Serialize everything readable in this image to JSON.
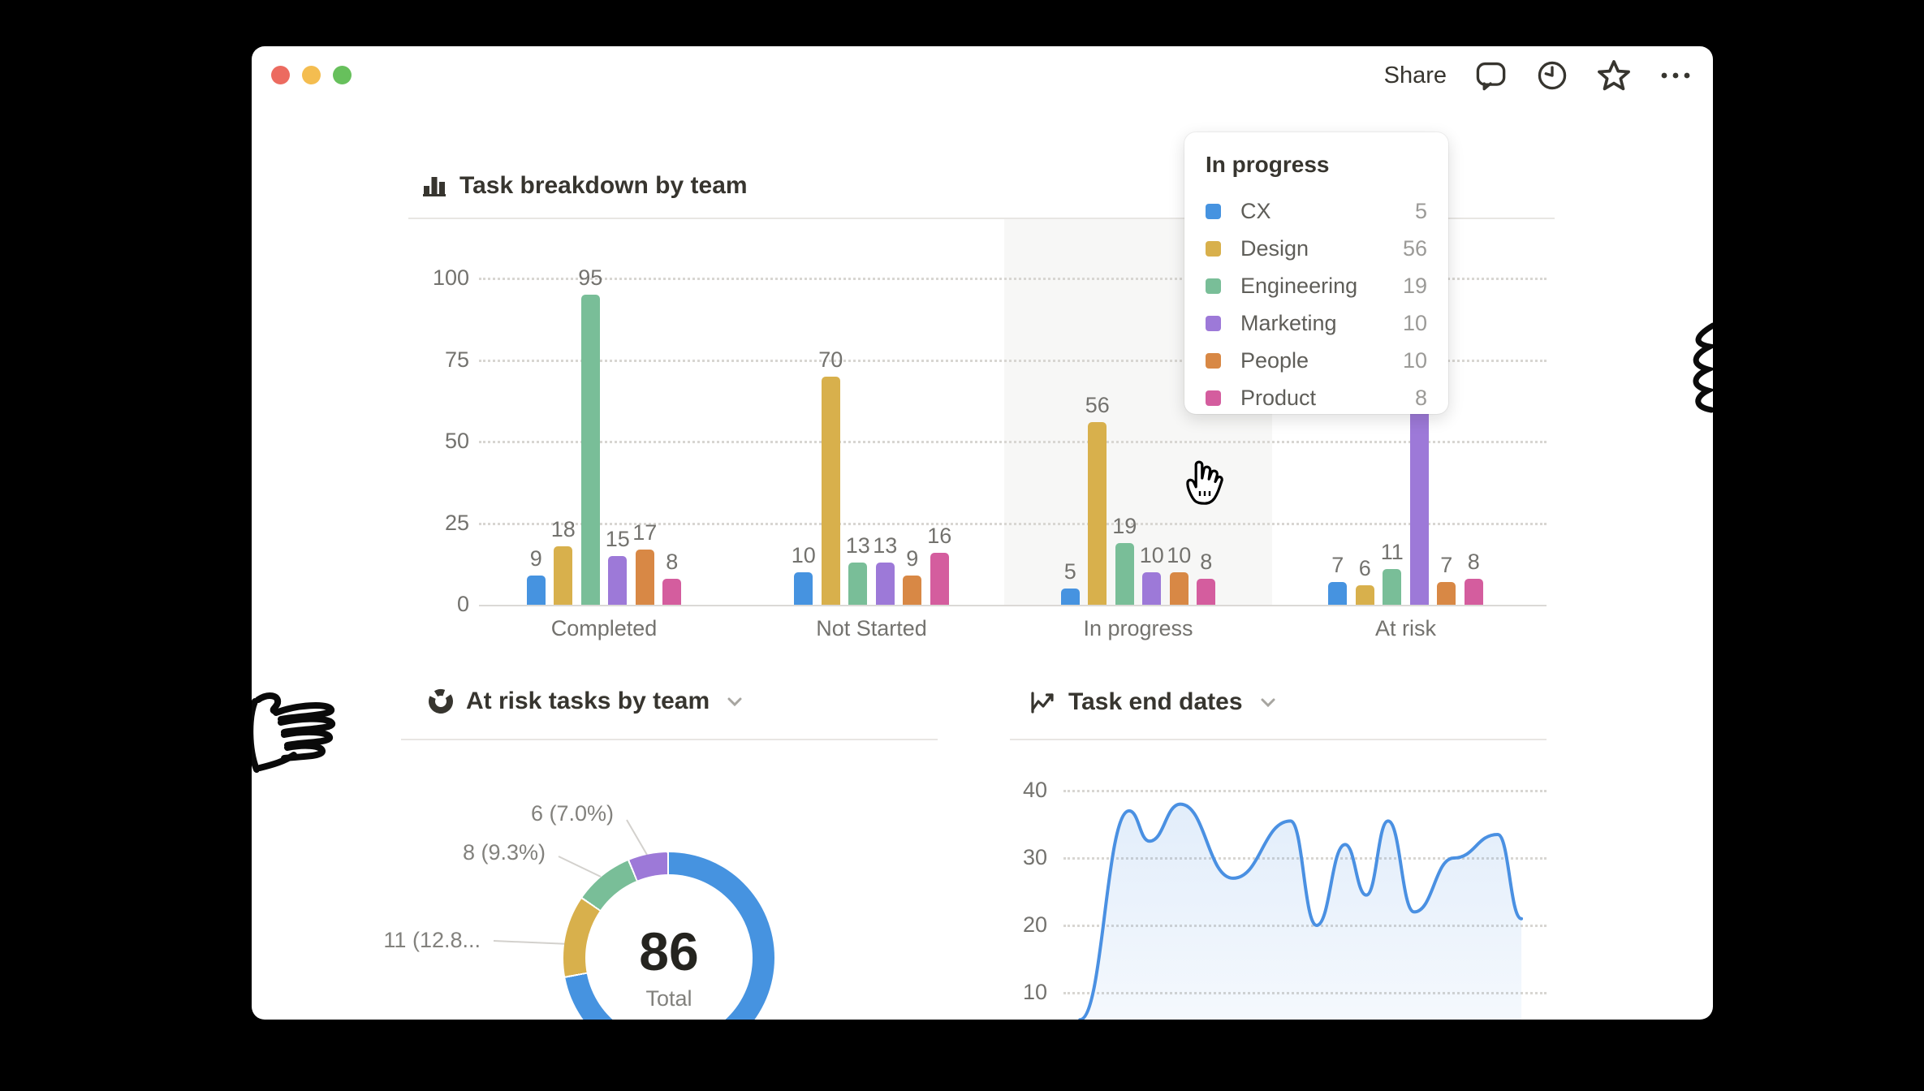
{
  "top_bar": {
    "share_label": "Share",
    "icons": [
      "comment-icon",
      "clock-icon",
      "star-icon",
      "more-icon"
    ],
    "traffic_light_colors": {
      "close": "#ec6b60",
      "minimize": "#f4bd50",
      "zoom": "#67c05c"
    }
  },
  "tooltip": {
    "title": "In progress",
    "rows": [
      {
        "team": "CX",
        "value": "5",
        "color": "#4693e0"
      },
      {
        "team": "Design",
        "value": "56",
        "color": "#d8b04c"
      },
      {
        "team": "Engineering",
        "value": "19",
        "color": "#79be98"
      },
      {
        "team": "Marketing",
        "value": "10",
        "color": "#9d79d8"
      },
      {
        "team": "People",
        "value": "10",
        "color": "#d88845"
      },
      {
        "team": "Product",
        "value": "8",
        "color": "#d45d9e"
      }
    ]
  },
  "chart_data": [
    {
      "id": "task_breakdown",
      "type": "bar",
      "title": "Task breakdown by team",
      "categories": [
        "Completed",
        "Not Started",
        "In progress",
        "At risk"
      ],
      "series": [
        {
          "name": "CX",
          "color": "#4693e0",
          "values": [
            9,
            10,
            5,
            7
          ]
        },
        {
          "name": "Design",
          "color": "#d8b04c",
          "values": [
            18,
            70,
            56,
            6
          ]
        },
        {
          "name": "Engineering",
          "color": "#79be98",
          "values": [
            95,
            13,
            19,
            11
          ]
        },
        {
          "name": "Marketing",
          "color": "#9d79d8",
          "values": [
            15,
            13,
            10,
            null
          ]
        },
        {
          "name": "People",
          "color": "#d88845",
          "values": [
            17,
            9,
            10,
            7
          ]
        },
        {
          "name": "Product",
          "color": "#d45d9e",
          "values": [
            8,
            16,
            8,
            8
          ]
        }
      ],
      "ylim": [
        0,
        100
      ],
      "yticks": [
        0,
        25,
        50,
        75,
        100
      ],
      "grid": "dotted-horizontal",
      "hovered_category": "In progress"
    },
    {
      "id": "at_risk_by_team",
      "type": "pie",
      "title": "At risk tasks by team",
      "total_value": "86",
      "total_label": "Total",
      "slices": [
        {
          "color": "#4693e0",
          "start_deg": 0,
          "end_deg": 259,
          "label": ""
        },
        {
          "color": "#d8b04c",
          "start_deg": 260,
          "end_deg": 304,
          "label": "11 (12.8..."
        },
        {
          "color": "#79be98",
          "start_deg": 305,
          "end_deg": 337,
          "label": "8 (9.3%)"
        },
        {
          "color": "#9d79d8",
          "start_deg": 338,
          "end_deg": 359,
          "label": "6 (7.0%)"
        }
      ]
    },
    {
      "id": "task_end_dates",
      "type": "area",
      "title": "Task end dates",
      "yticks": [
        10,
        20,
        30,
        40
      ],
      "line_color": "#4a90e2",
      "points": [
        {
          "x": 0.034,
          "y": 6
        },
        {
          "x": 0.136,
          "y": 37
        },
        {
          "x": 0.178,
          "y": 32.5
        },
        {
          "x": 0.242,
          "y": 38
        },
        {
          "x": 0.351,
          "y": 27
        },
        {
          "x": 0.47,
          "y": 35.5
        },
        {
          "x": 0.524,
          "y": 20
        },
        {
          "x": 0.583,
          "y": 32
        },
        {
          "x": 0.627,
          "y": 24.5
        },
        {
          "x": 0.672,
          "y": 35.5
        },
        {
          "x": 0.726,
          "y": 22
        },
        {
          "x": 0.808,
          "y": 30
        },
        {
          "x": 0.899,
          "y": 33.5
        },
        {
          "x": 0.948,
          "y": 21
        }
      ]
    }
  ]
}
